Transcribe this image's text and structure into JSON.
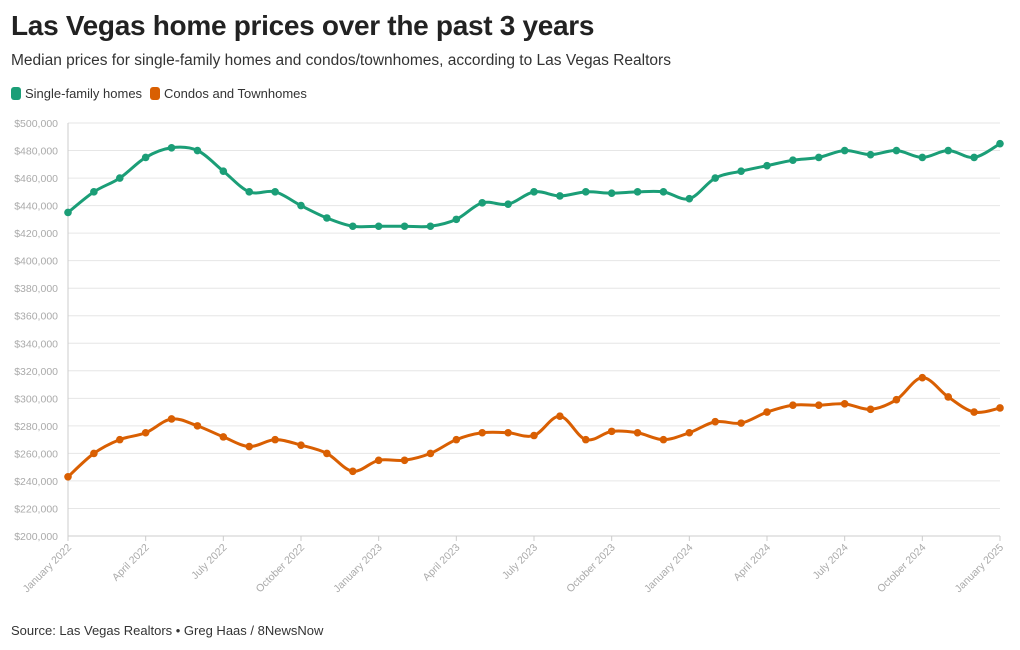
{
  "title": "Las Vegas home prices over the past 3 years",
  "subtitle": "Median prices for single-family homes and condos/townhomes, according to Las Vegas Realtors",
  "source": "Source: Las Vegas Realtors • Greg Haas / 8NewsNow",
  "colors": {
    "single_family": "#1b9e77",
    "condos": "#d95f02",
    "grid": "#e6e6e6",
    "tick_text": "#aaaaaa"
  },
  "chart_data": {
    "type": "line",
    "x": [
      "2022-01",
      "2022-02",
      "2022-03",
      "2022-04",
      "2022-05",
      "2022-06",
      "2022-07",
      "2022-08",
      "2022-09",
      "2022-10",
      "2022-11",
      "2022-12",
      "2023-01",
      "2023-02",
      "2023-03",
      "2023-04",
      "2023-05",
      "2023-06",
      "2023-07",
      "2023-08",
      "2023-09",
      "2023-10",
      "2023-11",
      "2023-12",
      "2024-01",
      "2024-02",
      "2024-03",
      "2024-04",
      "2024-05",
      "2024-06",
      "2024-07",
      "2024-08",
      "2024-09",
      "2024-10",
      "2024-11",
      "2024-12",
      "2025-01"
    ],
    "x_tick_labels": [
      "January 2022",
      "April 2022",
      "July 2022",
      "October 2022",
      "January 2023",
      "April 2023",
      "July 2023",
      "October 2023",
      "January 2024",
      "April 2024",
      "July 2024",
      "October 2024",
      "January 2025"
    ],
    "series": [
      {
        "name": "Single-family homes",
        "color": "#1b9e77",
        "values": [
          435000,
          450000,
          460000,
          475000,
          482000,
          480000,
          465000,
          450000,
          450000,
          440000,
          431000,
          425000,
          425000,
          425000,
          425000,
          430000,
          442000,
          441000,
          450000,
          447000,
          450000,
          449000,
          450000,
          450000,
          445000,
          460000,
          465000,
          469000,
          473000,
          475000,
          480000,
          477000,
          480000,
          475000,
          480000,
          475000,
          485000
        ]
      },
      {
        "name": "Condos and Townhomes",
        "color": "#d95f02",
        "values": [
          243000,
          260000,
          270000,
          275000,
          285000,
          280000,
          272000,
          265000,
          270000,
          266000,
          260000,
          247000,
          255000,
          255000,
          260000,
          270000,
          275000,
          275000,
          273000,
          287000,
          270000,
          276000,
          275000,
          270000,
          275000,
          283000,
          282000,
          290000,
          295000,
          295000,
          296000,
          292000,
          299000,
          315000,
          301000,
          290000,
          293000
        ]
      }
    ],
    "ylim": [
      200000,
      500000
    ],
    "y_ticks": [
      200000,
      220000,
      240000,
      260000,
      280000,
      300000,
      320000,
      340000,
      360000,
      380000,
      400000,
      420000,
      440000,
      460000,
      480000,
      500000
    ],
    "y_tick_format": "$#,###",
    "grid": true,
    "legend_position": "top-left"
  }
}
